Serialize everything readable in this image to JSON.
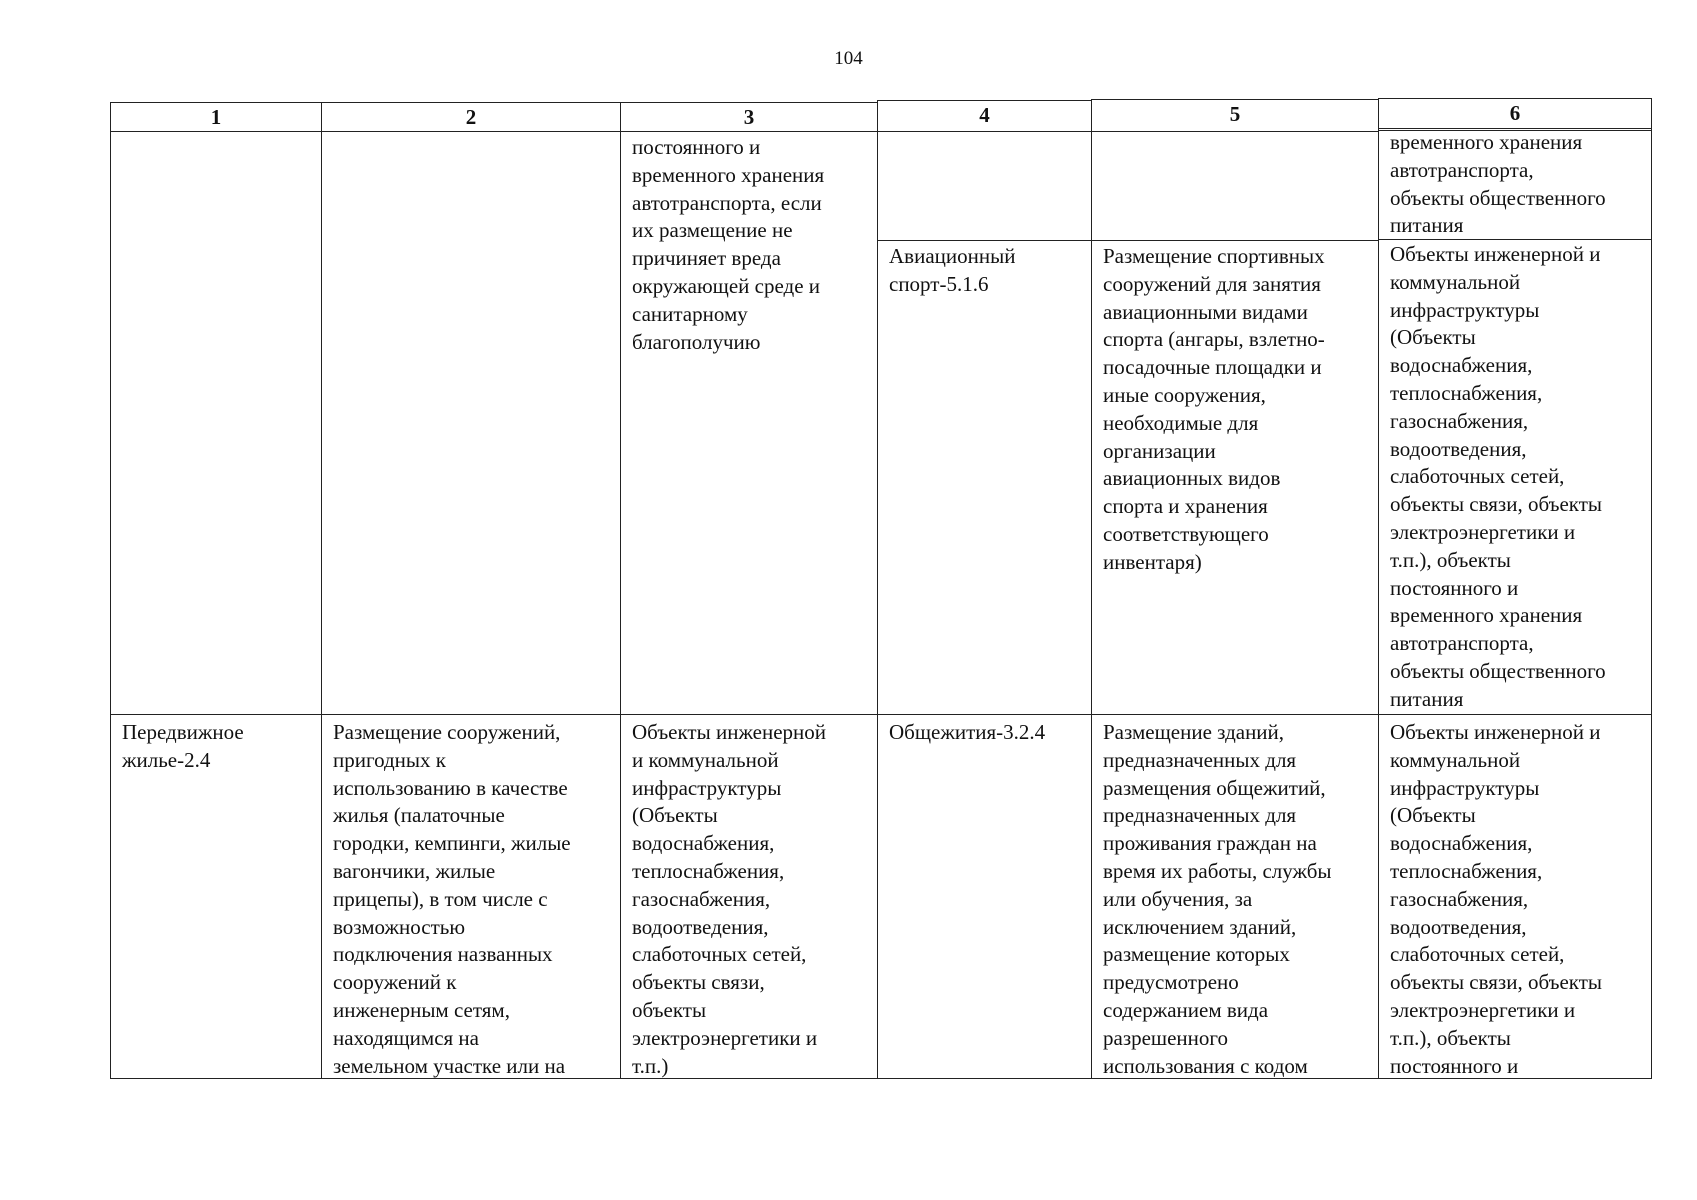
{
  "page_number": "104",
  "header": [
    "1",
    "2",
    "3",
    "4",
    "5",
    "6"
  ],
  "rows": [
    {
      "col1": "",
      "col2": "",
      "col3": "постоянного и\nвременного хранения\nавтотранспорта, если\nих размещение не\nпричиняет вреда\nокружающей среде и\nсанитарному\nблагополучию",
      "sub": [
        {
          "col4": "",
          "col5": "",
          "col6": "временного хранения\nавтотранспорта,\nобъекты общественного\nпитания"
        },
        {
          "col4": "Авиационный\nспорт-5.1.6",
          "col5": "Размещение спортивных\nсооружений для занятия\nавиационными видами\nспорта (ангары, взлетно-\nпосадочные площадки и\nиные сооружения,\nнеобходимые для\nорганизации\nавиационных видов\nспорта и хранения\nсоответствующего\nинвентаря)",
          "col6": "Объекты инженерной и\nкоммунальной\nинфраструктуры\n(Объекты\nводоснабжения,\nтеплоснабжения,\nгазоснабжения,\nводоотведения,\nслаботочных сетей,\nобъекты связи, объекты\nэлектроэнергетики и\nт.п.), объекты\nпостоянного и\nвременного хранения\nавтотранспорта,\nобъекты общественного\nпитания"
        }
      ]
    },
    {
      "col1": "Передвижное\nжилье-2.4",
      "col2": "Размещение сооружений,\nпригодных к\nиспользованию в качестве\nжилья (палаточные\nгородки, кемпинги, жилые\nвагончики, жилые\nприцепы), в том числе с\nвозможностью\nподключения названных\nсооружений к\nинженерным сетям,\nнаходящимся на\nземельном участке или на",
      "col3": "Объекты инженерной\nи коммунальной\nинфраструктуры\n(Объекты\nводоснабжения,\nтеплоснабжения,\nгазоснабжения,\nводоотведения,\nслаботочных сетей,\nобъекты связи,\nобъекты\nэлектроэнергетики и\nт.п.)",
      "col4": "Общежития-3.2.4",
      "col5": "Размещение зданий,\nпредназначенных для\nразмещения общежитий,\nпредназначенных для\nпроживания граждан на\nвремя их работы, службы\nили обучения, за\nисключением зданий,\nразмещение которых\nпредусмотрено\nсодержанием вида\nразрешенного\nиспользования с кодом",
      "col6": "Объекты инженерной и\nкоммунальной\nинфраструктуры\n(Объекты\nводоснабжения,\nтеплоснабжения,\nгазоснабжения,\nводоотведения,\nслаботочных сетей,\nобъекты связи, объекты\nэлектроэнергетики и\nт.п.), объекты\nпостоянного и"
    }
  ]
}
